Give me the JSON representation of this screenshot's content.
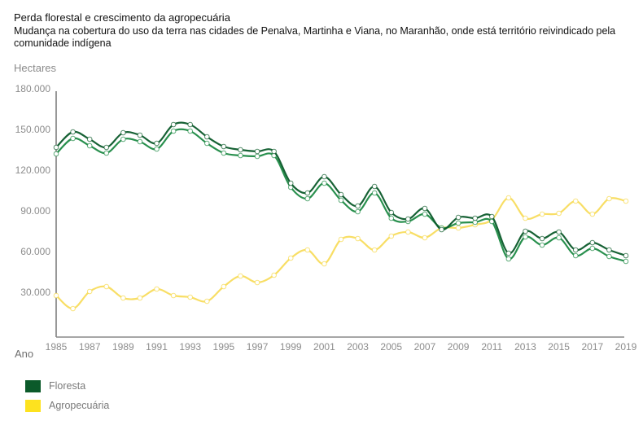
{
  "chart_data": {
    "type": "line",
    "title": "Perda florestal e crescimento da agropecuária",
    "subtitle": "Mudança na cobertura do uso da terra nas cidades de Penalva, Martinha e Viana, no Maranhão, onde está território reivindicado pela comunidade indígena",
    "ylabel": "Hectares",
    "xlabel": "Ano",
    "ylim": [
      0,
      180000
    ],
    "yticks": [
      30000,
      60000,
      90000,
      120000,
      150000,
      180000
    ],
    "ytick_labels": [
      "30.000",
      "60.000",
      "90.000",
      "120.000",
      "150.000",
      "180.000"
    ],
    "xlim": [
      1985,
      2019
    ],
    "xticks": [
      1985,
      1987,
      1989,
      1991,
      1993,
      1995,
      1997,
      1999,
      2001,
      2003,
      2005,
      2007,
      2009,
      2011,
      2013,
      2015,
      2017,
      2019
    ],
    "xtick_labels": [
      "1985",
      "1987",
      "1989",
      "1991",
      "1993",
      "1995",
      "1997",
      "1999",
      "2001",
      "2003",
      "2005",
      "2007",
      "2009",
      "2011",
      "2013",
      "2015",
      "2017",
      "2019"
    ],
    "grid": false,
    "legend_position": "bottom-left",
    "x": [
      1985,
      1986,
      1987,
      1988,
      1989,
      1990,
      1991,
      1992,
      1993,
      1994,
      1995,
      1996,
      1997,
      1998,
      1999,
      2000,
      2001,
      2002,
      2003,
      2004,
      2005,
      2006,
      2007,
      2008,
      2009,
      2010,
      2011,
      2012,
      2013,
      2014,
      2015,
      2016,
      2017,
      2018,
      2019
    ],
    "series": [
      {
        "name": "Floresta",
        "color": "#0b5a2a",
        "values": [
          136800,
          148200,
          142800,
          136800,
          147600,
          145800,
          139800,
          153600,
          153600,
          144600,
          137400,
          135000,
          133800,
          133800,
          110400,
          103200,
          115200,
          102000,
          93600,
          108000,
          88800,
          84000,
          91800,
          76200,
          85200,
          84600,
          85800,
          58800,
          75000,
          69600,
          74400,
          61200,
          66600,
          61200,
          57000
        ]
      },
      {
        "name": "Floresta",
        "color": "#1e8a45",
        "values": [
          132000,
          143400,
          138000,
          132600,
          142800,
          141000,
          135600,
          148800,
          148800,
          139800,
          132600,
          130800,
          130200,
          130800,
          107400,
          99000,
          110400,
          97800,
          89400,
          103200,
          84600,
          82200,
          87600,
          77400,
          81000,
          81600,
          82200,
          54600,
          70800,
          64800,
          70200,
          57000,
          62400,
          56400,
          52800
        ]
      },
      {
        "name": "Agropecuária",
        "color": "#f7d84a",
        "values": [
          27600,
          18000,
          30600,
          34200,
          25800,
          25800,
          32400,
          27600,
          26400,
          23400,
          34200,
          42000,
          37200,
          42600,
          55200,
          61200,
          51000,
          69000,
          69600,
          61200,
          71400,
          74400,
          70200,
          77400,
          77400,
          79800,
          83400,
          99600,
          84600,
          87600,
          88200,
          97200,
          87600,
          99000,
          97200
        ]
      }
    ],
    "legend": [
      {
        "label": "Floresta",
        "color": "#0b5a2a"
      },
      {
        "label": "Agropecuária",
        "color": "#fde21f"
      }
    ]
  }
}
